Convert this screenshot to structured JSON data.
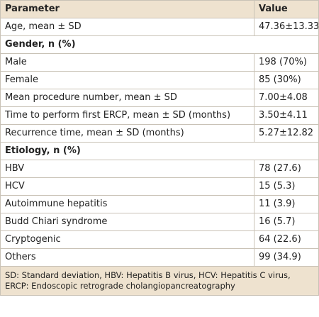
{
  "table": {
    "header": [
      "Parameter",
      "Value"
    ],
    "rows": [
      [
        "Age, mean ± SD",
        "47.36±13.33"
      ],
      [
        "Gender, n (%)"
      ],
      [
        "Male",
        "198 (70%)"
      ],
      [
        "Female",
        "85 (30%)"
      ],
      [
        "Mean procedure number, mean ± SD",
        "7.00±4.08"
      ],
      [
        "Time to perform first ERCP, mean ± SD (months)",
        "3.50±4.11"
      ],
      [
        "Recurrence time, mean ± SD (months)",
        "5.27±12.82"
      ],
      [
        "Etiology, n (%)"
      ],
      [
        "HBV",
        "78 (27.6)"
      ],
      [
        "HCV",
        "15 (5.3)"
      ],
      [
        "Autoimmune hepatitis",
        "11 (3.9)"
      ],
      [
        "Budd Chiari syndrome",
        "16 (5.7)"
      ],
      [
        "Cryptogenic",
        "64 (22.6)"
      ],
      [
        "Others",
        "99 (34.9)"
      ]
    ],
    "footnote": "SD: Standard deviation, HBV: Hepatitis B virus, HCV: Hepatitis C virus, ERCP: Endoscopic retrograde cholangiopancreatography"
  }
}
